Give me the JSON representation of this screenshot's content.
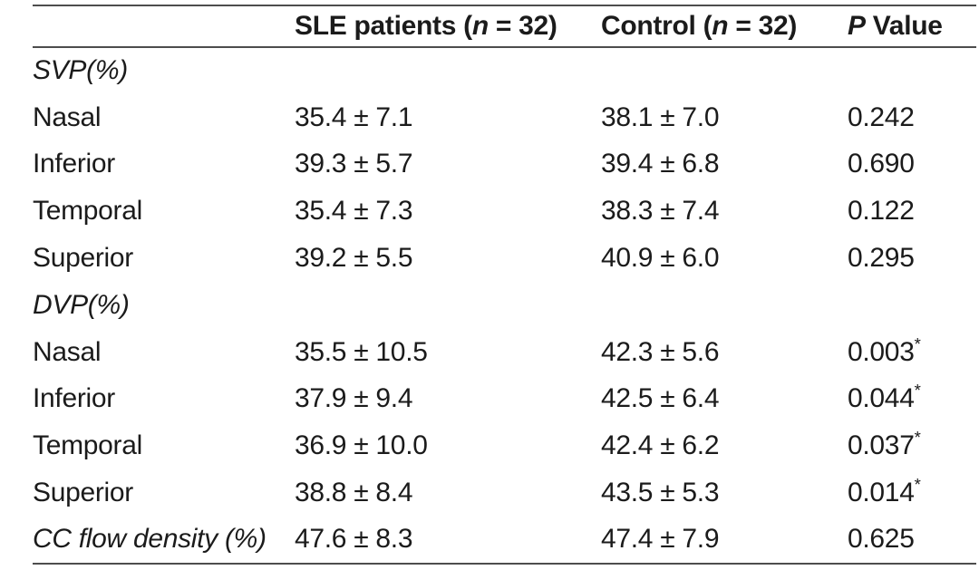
{
  "table": {
    "header": {
      "empty": "",
      "sle": {
        "pre": "SLE patients (",
        "n": "n",
        "post": " = 32)"
      },
      "control": {
        "pre": "Control (",
        "n": "n",
        "post": " = 32)"
      },
      "p": {
        "p": "P",
        "post": " Value"
      }
    },
    "sig_marker": "*",
    "rows": [
      {
        "label": "SVP(%)",
        "italic": true,
        "sle": "",
        "control": "",
        "p": "",
        "sig": false
      },
      {
        "label": "Nasal",
        "italic": false,
        "sle": "35.4 ± 7.1",
        "control": "38.1 ± 7.0",
        "p": "0.242",
        "sig": false
      },
      {
        "label": "Inferior",
        "italic": false,
        "sle": "39.3 ± 5.7",
        "control": "39.4 ± 6.8",
        "p": "0.690",
        "sig": false
      },
      {
        "label": "Temporal",
        "italic": false,
        "sle": "35.4 ± 7.3",
        "control": "38.3 ± 7.4",
        "p": "0.122",
        "sig": false
      },
      {
        "label": "Superior",
        "italic": false,
        "sle": "39.2 ± 5.5",
        "control": "40.9 ± 6.0",
        "p": "0.295",
        "sig": false
      },
      {
        "label": "DVP(%)",
        "italic": true,
        "sle": "",
        "control": "",
        "p": "",
        "sig": false
      },
      {
        "label": "Nasal",
        "italic": false,
        "sle": "35.5 ± 10.5",
        "control": "42.3 ± 5.6",
        "p": "0.003",
        "sig": true
      },
      {
        "label": "Inferior",
        "italic": false,
        "sle": "37.9 ± 9.4",
        "control": "42.5 ± 6.4",
        "p": "0.044",
        "sig": true
      },
      {
        "label": "Temporal",
        "italic": false,
        "sle": "36.9 ± 10.0",
        "control": "42.4 ± 6.2",
        "p": "0.037",
        "sig": true
      },
      {
        "label": "Superior",
        "italic": false,
        "sle": "38.8 ± 8.4",
        "control": "43.5 ± 5.3",
        "p": "0.014",
        "sig": true
      },
      {
        "label": "CC flow density (%)",
        "italic": true,
        "sle": "47.6 ± 8.3",
        "control": "47.4 ± 7.9",
        "p": "0.625",
        "sig": false
      }
    ]
  },
  "colors": {
    "text": "#1b1b1b",
    "rule": "#4d4d4d",
    "background": "#ffffff"
  }
}
